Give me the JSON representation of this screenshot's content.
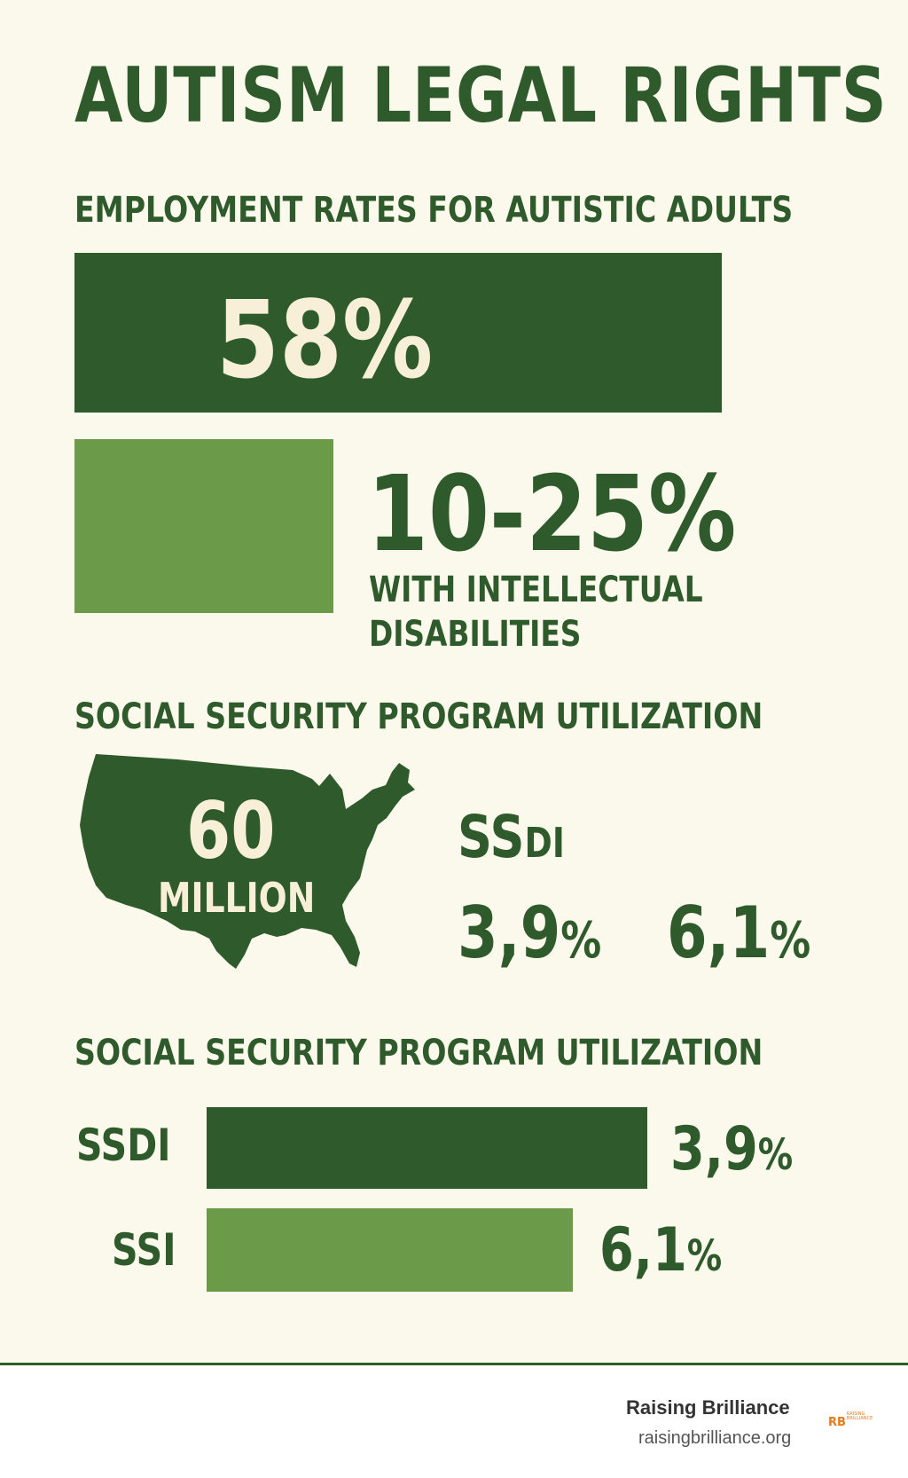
{
  "title": "AUTISM LEGAL RIGHTS",
  "employment": {
    "heading": "EMPLOYMENT RATES FOR AUTISTIC ADULTS",
    "overall_value": "58%",
    "intellectual_value": "10-25%",
    "intellectual_label": "WITH INTELLECTUAL DISABILITIES",
    "colors": {
      "dark": "#2f5a2b",
      "light": "#6b9b48"
    }
  },
  "social_security_map": {
    "heading": "SOCIAL SECURITY PROGRAM UTILIZATION",
    "map_number": "60",
    "map_unit": "MILLION",
    "program_label_main": "SS",
    "program_label_suffix": "DI",
    "value_left_number": "3,9",
    "value_left_unit": "%",
    "value_right_number": "6,1",
    "value_right_unit": "%",
    "map_icon": "usa-map-icon"
  },
  "social_security_bars": {
    "heading": "SOCIAL SECURITY PROGRAM UTILIZATION",
    "rows": [
      {
        "label": "SSDI",
        "value_number": "3,9",
        "value_unit": "%"
      },
      {
        "label": "SSI",
        "value_number": "6,1",
        "value_unit": "%"
      }
    ]
  },
  "footer": {
    "brand": "Raising Brilliance",
    "url": "raisingbrilliance.org",
    "logo_mark": "RB",
    "logo_text_line1": "RAISING",
    "logo_text_line2": "BRILLIANCE",
    "accent": "#e57c1c"
  }
}
